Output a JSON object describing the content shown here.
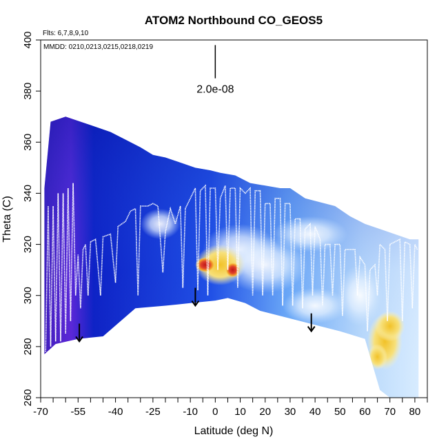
{
  "chart_data": {
    "type": "heatmap",
    "title": "ATOM2 Northbound CO_GEOS5",
    "flights_label": "Flts: 6,7,8,9,10",
    "dates_label": "MMDD: 0210,0213,0215,0218,0219",
    "xlabel": "Latitude (deg N)",
    "ylabel": "Theta (C)",
    "xlim": [
      -70,
      85
    ],
    "ylim": [
      260,
      400
    ],
    "x_ticks": [
      -70,
      -55,
      -40,
      -25,
      -10,
      0,
      10,
      20,
      30,
      40,
      50,
      60,
      70,
      80
    ],
    "x_minor_ticks": [
      -65,
      -60,
      -50,
      -45,
      -35,
      -30,
      -20,
      -15,
      -5,
      5,
      15,
      25,
      35,
      45,
      55,
      65,
      75,
      85
    ],
    "y_ticks": [
      260,
      280,
      300,
      320,
      340,
      360,
      380,
      400
    ],
    "scale_label": "2.0e-08",
    "scale_bar_value": 2e-08,
    "colors": {
      "low": "#0b1fc4",
      "mid": "#dceeff",
      "high": "#f2c228",
      "peak": "#d42020",
      "frame": "#000000",
      "flight": "#ffffff"
    },
    "upper_boundary": [
      [
        -68.5,
        342
      ],
      [
        -66,
        368
      ],
      [
        -60,
        370
      ],
      [
        -54,
        368
      ],
      [
        -48,
        366
      ],
      [
        -42,
        364
      ],
      [
        -36,
        361
      ],
      [
        -30,
        358
      ],
      [
        -25,
        355
      ],
      [
        -20,
        354
      ],
      [
        -14,
        352
      ],
      [
        -8,
        350
      ],
      [
        -2,
        349
      ],
      [
        2,
        348
      ],
      [
        8,
        347
      ],
      [
        14,
        344
      ],
      [
        20,
        343
      ],
      [
        26,
        342
      ],
      [
        30,
        342
      ],
      [
        36,
        338
      ],
      [
        40,
        337
      ],
      [
        48,
        335
      ],
      [
        54,
        331
      ],
      [
        60,
        328
      ],
      [
        66,
        326
      ],
      [
        72,
        324
      ],
      [
        78,
        322
      ],
      [
        81.5,
        322
      ]
    ],
    "lower_boundary": [
      [
        81.5,
        260
      ],
      [
        70,
        260
      ],
      [
        66,
        263
      ],
      [
        60,
        283
      ],
      [
        50,
        286
      ],
      [
        42,
        288
      ],
      [
        34,
        290
      ],
      [
        26,
        292
      ],
      [
        18,
        294
      ],
      [
        12,
        297
      ],
      [
        5,
        299
      ],
      [
        0,
        298
      ],
      [
        -10,
        297
      ],
      [
        -20,
        296
      ],
      [
        -32,
        295
      ],
      [
        -45,
        284
      ],
      [
        -55,
        283
      ],
      [
        -64,
        281
      ],
      [
        -68.5,
        277
      ]
    ],
    "co_hotspots": [
      {
        "lat": -4,
        "theta": 312,
        "w": 8,
        "h": 6,
        "level": "peak"
      },
      {
        "lat": 7,
        "theta": 310,
        "w": 6,
        "h": 6,
        "level": "peak"
      },
      {
        "lat": 2,
        "theta": 312,
        "w": 20,
        "h": 16,
        "level": "high"
      },
      {
        "lat": 10,
        "theta": 318,
        "w": 30,
        "h": 20,
        "level": "mid"
      },
      {
        "lat": 20,
        "theta": 312,
        "w": 34,
        "h": 22,
        "level": "mid"
      },
      {
        "lat": 40,
        "theta": 296,
        "w": 26,
        "h": 14,
        "level": "mid"
      },
      {
        "lat": 58,
        "theta": 300,
        "w": 18,
        "h": 24,
        "level": "mid"
      },
      {
        "lat": 68,
        "theta": 282,
        "w": 14,
        "h": 22,
        "level": "high"
      },
      {
        "lat": 65,
        "theta": 276,
        "w": 8,
        "h": 10,
        "level": "high"
      },
      {
        "lat": 70,
        "theta": 288,
        "w": 12,
        "h": 12,
        "level": "high"
      },
      {
        "lat": 38,
        "theta": 324,
        "w": 30,
        "h": 14,
        "level": "mid"
      },
      {
        "lat": -22,
        "theta": 328,
        "w": 16,
        "h": 12,
        "level": "mid"
      }
    ],
    "flight_track": [
      [
        -68,
        278
      ],
      [
        -67,
        335
      ],
      [
        -66,
        280
      ],
      [
        -65,
        335
      ],
      [
        -64,
        282
      ],
      [
        -63,
        340
      ],
      [
        -62,
        282
      ],
      [
        -61,
        340
      ],
      [
        -60,
        285
      ],
      [
        -59,
        342
      ],
      [
        -58,
        290
      ],
      [
        -57,
        344
      ],
      [
        -56,
        300
      ],
      [
        -55,
        316
      ],
      [
        -54,
        295
      ],
      [
        -53,
        318
      ],
      [
        -52,
        320
      ],
      [
        -51,
        300
      ],
      [
        -50,
        321
      ],
      [
        -48,
        322
      ],
      [
        -46,
        300
      ],
      [
        -45,
        323
      ],
      [
        -42,
        324
      ],
      [
        -40,
        305
      ],
      [
        -39,
        327
      ],
      [
        -36,
        329
      ],
      [
        -34,
        333
      ],
      [
        -32,
        334
      ],
      [
        -31,
        300
      ],
      [
        -30,
        335
      ],
      [
        -27,
        335
      ],
      [
        -25,
        336
      ],
      [
        -23,
        335
      ],
      [
        -21,
        309
      ],
      [
        -20,
        325
      ],
      [
        -18,
        334
      ],
      [
        -16,
        328
      ],
      [
        -14,
        335
      ],
      [
        -13,
        303
      ],
      [
        -12,
        334
      ],
      [
        -10,
        338
      ],
      [
        -9,
        340
      ],
      [
        -8,
        342
      ],
      [
        -7,
        302
      ],
      [
        -6,
        341
      ],
      [
        -4,
        343
      ],
      [
        -3,
        300
      ],
      [
        -2,
        342
      ],
      [
        0,
        342
      ],
      [
        1,
        310
      ],
      [
        2,
        338
      ],
      [
        4,
        343
      ],
      [
        5,
        310
      ],
      [
        6,
        342
      ],
      [
        8,
        342
      ],
      [
        9,
        303
      ],
      [
        10,
        342
      ],
      [
        12,
        340
      ],
      [
        14,
        342
      ],
      [
        15,
        300
      ],
      [
        16,
        341
      ],
      [
        18,
        341
      ],
      [
        19,
        300
      ],
      [
        20,
        336
      ],
      [
        22,
        336
      ],
      [
        23,
        300
      ],
      [
        24,
        338
      ],
      [
        26,
        338
      ],
      [
        27,
        296
      ],
      [
        28,
        336
      ],
      [
        30,
        336
      ],
      [
        31,
        296
      ],
      [
        32,
        330
      ],
      [
        34,
        330
      ],
      [
        35,
        295
      ],
      [
        36,
        326
      ],
      [
        38,
        328
      ],
      [
        39,
        300
      ],
      [
        40,
        327
      ],
      [
        42,
        322
      ],
      [
        43,
        296
      ],
      [
        44,
        320
      ],
      [
        46,
        320
      ],
      [
        47,
        300
      ],
      [
        48,
        320
      ],
      [
        50,
        320
      ],
      [
        51,
        292
      ],
      [
        52,
        318
      ],
      [
        56,
        318
      ],
      [
        57,
        300
      ],
      [
        58,
        315
      ],
      [
        60,
        312
      ],
      [
        61,
        286
      ],
      [
        62,
        310
      ],
      [
        64,
        312
      ],
      [
        65,
        300
      ],
      [
        66,
        320
      ],
      [
        68,
        318
      ],
      [
        69,
        290
      ],
      [
        70,
        320
      ],
      [
        74,
        322
      ],
      [
        75,
        290
      ],
      [
        76,
        321
      ],
      [
        78,
        320
      ],
      [
        79,
        295
      ],
      [
        80,
        320
      ],
      [
        81,
        318
      ]
    ],
    "annotations": [
      {
        "type": "arrow",
        "lat": -54.5,
        "theta_from": 289,
        "theta_to": 282
      },
      {
        "type": "arrow",
        "lat": -8,
        "theta_from": 303,
        "theta_to": 296
      },
      {
        "type": "arrow",
        "lat": 38.5,
        "theta_from": 293,
        "theta_to": 286
      }
    ],
    "scale_bar": {
      "lat": 0,
      "theta_from": 398,
      "theta_to": 385,
      "label_theta": 381
    }
  }
}
